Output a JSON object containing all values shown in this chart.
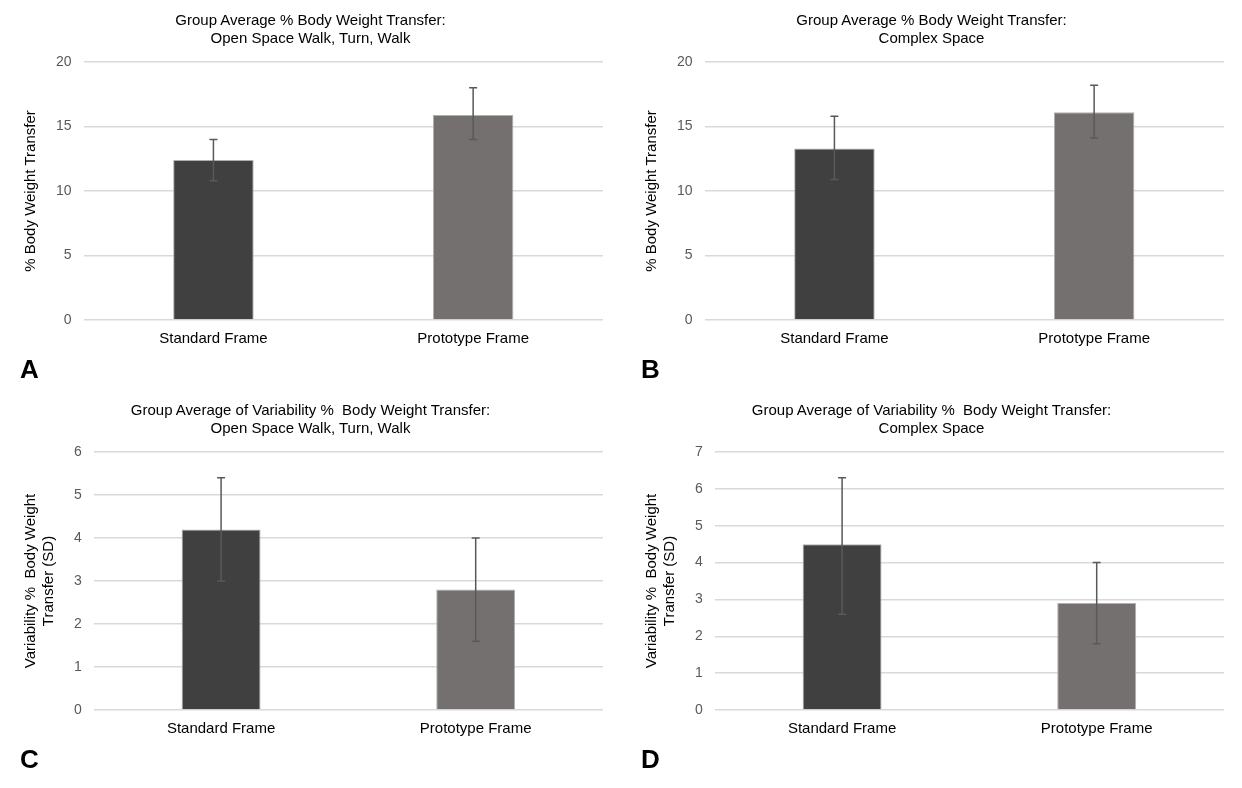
{
  "chart_data": [
    {
      "type": "bar",
      "title": "Group Average % Body Weight Transfer:\nOpen Space Walk, Turn, Walk",
      "ylabel": "% Body Weight Transfer",
      "categories": [
        "Standard Frame",
        "Prototype Frame"
      ],
      "values": [
        12.4,
        15.9
      ],
      "colors": [
        "#404040",
        "#747070"
      ],
      "errors": [
        [
          10.8,
          14.0
        ],
        [
          14.0,
          18.0
        ]
      ],
      "ylim": [
        0,
        20
      ],
      "yticks": [
        0,
        5,
        10,
        15,
        20
      ],
      "grid": "y",
      "annotations": [
        "A"
      ]
    },
    {
      "type": "bar",
      "title": "Group Average % Body Weight Transfer:\nComplex Space",
      "ylabel": "% Body Weight Transfer",
      "categories": [
        "Standard Frame",
        "Prototype Frame"
      ],
      "values": [
        13.3,
        16.1
      ],
      "colors": [
        "#404040",
        "#747070"
      ],
      "errors": [
        [
          10.9,
          15.8
        ],
        [
          14.1,
          18.2
        ]
      ],
      "ylim": [
        0,
        20
      ],
      "yticks": [
        0,
        5,
        10,
        15,
        20
      ],
      "grid": "y",
      "annotations": [
        "B"
      ]
    },
    {
      "type": "bar",
      "title": "Group Average of Variability %  Body Weight Transfer:\nOpen Space Walk, Turn, Walk",
      "ylabel": "Variability %  Body Weight\nTransfer (SD)",
      "categories": [
        "Standard Frame",
        "Prototype Frame"
      ],
      "values": [
        4.2,
        2.8
      ],
      "colors": [
        "#404040",
        "#747070"
      ],
      "errors": [
        [
          3.0,
          5.4
        ],
        [
          1.6,
          4.0
        ]
      ],
      "ylim": [
        0,
        6
      ],
      "yticks": [
        0,
        1,
        2,
        3,
        4,
        5,
        6
      ],
      "grid": "y",
      "annotations": [
        "C"
      ]
    },
    {
      "type": "bar",
      "title": "Group Average of Variability %  Body Weight Transfer:\nComplex Space",
      "ylabel": "Variability %  Body Weight\nTransfer (SD)",
      "categories": [
        "Standard Frame",
        "Prototype Frame"
      ],
      "values": [
        4.5,
        2.9
      ],
      "colors": [
        "#404040",
        "#747070"
      ],
      "errors": [
        [
          2.6,
          6.3
        ],
        [
          1.8,
          4.0
        ]
      ],
      "ylim": [
        0,
        7
      ],
      "yticks": [
        0,
        1,
        2,
        3,
        4,
        5,
        6,
        7
      ],
      "grid": "y",
      "annotations": [
        "D"
      ]
    }
  ]
}
